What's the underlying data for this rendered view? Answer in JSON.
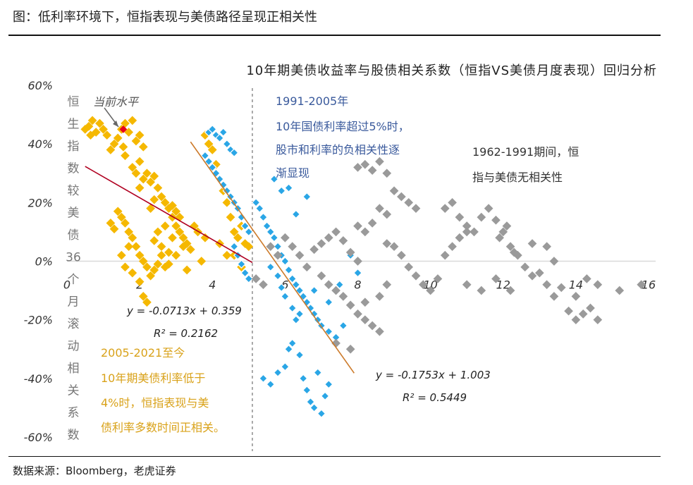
{
  "header": "图：低利率环境下，恒指表现与美债路径呈现正相关性",
  "source": "数据来源：Bloomberg，老虎证券",
  "chart_data": {
    "type": "scatter",
    "title": "10年期美债收益率与股债相关系数（恒指VS美债月度表现）回归分析",
    "ylabel": "恒生指数较美债36个月滚动相关系数",
    "xlim": [
      0,
      16
    ],
    "ylim": [
      -0.6,
      0.6
    ],
    "xticks": [
      "0",
      "2",
      "4",
      "6",
      "8",
      "10",
      "12",
      "14",
      "16"
    ],
    "yticks": [
      "60%",
      "40%",
      "20%",
      "0%",
      "-20%",
      "-40%",
      "-60%"
    ],
    "divider_x": 5.1,
    "annotations": {
      "current_level": "当前水平",
      "blue_note": [
        "1991-2005年",
        "10年国债利率超过5%时，",
        "股市和利率的负相关性逐",
        "渐显现"
      ],
      "gray_note": [
        "1962-1991期间，恒",
        "指与美债无相关性"
      ],
      "orange_note": [
        "2005-2021至今",
        "10年期美债利率低于",
        "4%时，恒指表现与美",
        "债利率多数时间正相关。"
      ]
    },
    "regressions": [
      {
        "equation": "y = -0.0713x + 0.359",
        "r2": "R² = 0.2162",
        "slope": -0.0713,
        "intercept": 0.359,
        "x_range": [
          0.5,
          5.1
        ],
        "color": "#b00020"
      },
      {
        "equation": "y = -0.1753x + 1.003",
        "r2": "R² = 0.5449",
        "slope": -0.1753,
        "intercept": 1.003,
        "x_range": [
          3.4,
          7.9
        ],
        "color": "#cc7a2a"
      }
    ],
    "current_point": {
      "x": 1.55,
      "y": 0.45,
      "color": "#e8001c"
    },
    "series": [
      {
        "name": "",
        "color": "#f5b800",
        "points": [
          [
            0.5,
            0.45
          ],
          [
            0.6,
            0.46
          ],
          [
            0.7,
            0.48
          ],
          [
            0.8,
            0.44
          ],
          [
            0.9,
            0.47
          ],
          [
            1.0,
            0.45
          ],
          [
            1.1,
            0.43
          ],
          [
            0.65,
            0.43
          ],
          [
            1.2,
            0.38
          ],
          [
            1.4,
            0.42
          ],
          [
            1.5,
            0.45
          ],
          [
            1.6,
            0.47
          ],
          [
            1.7,
            0.44
          ],
          [
            1.8,
            0.48
          ],
          [
            1.9,
            0.41
          ],
          [
            2.0,
            0.43
          ],
          [
            2.1,
            0.39
          ],
          [
            1.3,
            0.4
          ],
          [
            1.55,
            0.39
          ],
          [
            1.9,
            0.3
          ],
          [
            2.0,
            0.25
          ],
          [
            2.1,
            0.28
          ],
          [
            2.2,
            0.3
          ],
          [
            2.3,
            0.27
          ],
          [
            2.4,
            0.29
          ],
          [
            2.5,
            0.25
          ],
          [
            2.6,
            0.22
          ],
          [
            2.7,
            0.2
          ],
          [
            2.8,
            0.18
          ],
          [
            2.9,
            0.15
          ],
          [
            3.0,
            0.12
          ],
          [
            3.1,
            0.1
          ],
          [
            3.2,
            0.08
          ],
          [
            3.3,
            0.06
          ],
          [
            3.4,
            0.04
          ],
          [
            1.4,
            0.17
          ],
          [
            1.5,
            0.15
          ],
          [
            1.6,
            0.13
          ],
          [
            1.7,
            0.1
          ],
          [
            1.8,
            0.08
          ],
          [
            1.9,
            0.05
          ],
          [
            2.0,
            0.02
          ],
          [
            2.1,
            0.0
          ],
          [
            2.2,
            -0.02
          ],
          [
            2.3,
            -0.05
          ],
          [
            2.4,
            0.07
          ],
          [
            2.5,
            0.1
          ],
          [
            2.6,
            0.05
          ],
          [
            2.7,
            0.12
          ],
          [
            2.8,
            -0.01
          ],
          [
            2.9,
            0.08
          ],
          [
            1.5,
            0.02
          ],
          [
            1.6,
            -0.02
          ],
          [
            1.7,
            0.05
          ],
          [
            1.8,
            -0.04
          ],
          [
            2.0,
            -0.07
          ],
          [
            2.1,
            -0.12
          ],
          [
            2.2,
            -0.14
          ],
          [
            2.4,
            -0.03
          ],
          [
            2.5,
            -0.01
          ],
          [
            2.6,
            0.02
          ],
          [
            2.7,
            -0.02
          ],
          [
            2.8,
            0.03
          ],
          [
            3.0,
            0.02
          ],
          [
            3.2,
            0.05
          ],
          [
            3.3,
            -0.03
          ],
          [
            1.2,
            0.13
          ],
          [
            1.3,
            0.11
          ],
          [
            2.3,
            0.18
          ],
          [
            2.4,
            0.21
          ],
          [
            2.9,
            0.19
          ],
          [
            3.0,
            0.17
          ],
          [
            3.1,
            0.15
          ],
          [
            3.5,
            0.12
          ],
          [
            3.6,
            0.1
          ],
          [
            3.8,
            0.08
          ],
          [
            3.9,
            0.4
          ],
          [
            4.0,
            0.38
          ],
          [
            3.8,
            0.43
          ],
          [
            4.1,
            0.33
          ],
          [
            4.3,
            0.24
          ],
          [
            4.4,
            0.2
          ],
          [
            4.5,
            0.15
          ],
          [
            4.6,
            0.1
          ],
          [
            4.7,
            0.08
          ],
          [
            4.8,
            0.12
          ],
          [
            4.9,
            0.06
          ],
          [
            5.0,
            0.05
          ],
          [
            4.6,
            0.02
          ],
          [
            4.8,
            -0.02
          ],
          [
            4.2,
            0.06
          ],
          [
            4.4,
            0.02
          ],
          [
            3.7,
            0.0
          ],
          [
            1.6,
            0.36
          ],
          [
            1.8,
            0.32
          ],
          [
            2.0,
            0.34
          ]
        ]
      },
      {
        "name": "",
        "color": "#2aa6e6",
        "points": [
          [
            3.9,
            0.44
          ],
          [
            4.0,
            0.45
          ],
          [
            4.1,
            0.43
          ],
          [
            4.2,
            0.42
          ],
          [
            4.3,
            0.44
          ],
          [
            4.4,
            0.4
          ],
          [
            4.5,
            0.38
          ],
          [
            4.6,
            0.37
          ],
          [
            3.8,
            0.36
          ],
          [
            3.9,
            0.34
          ],
          [
            4.0,
            0.32
          ],
          [
            4.1,
            0.3
          ],
          [
            4.2,
            0.28
          ],
          [
            4.3,
            0.26
          ],
          [
            4.4,
            0.24
          ],
          [
            4.5,
            0.22
          ],
          [
            4.6,
            0.2
          ],
          [
            4.7,
            0.18
          ],
          [
            4.8,
            0.15
          ],
          [
            4.9,
            0.12
          ],
          [
            5.0,
            0.1
          ],
          [
            4.6,
            0.05
          ],
          [
            4.7,
            0.02
          ],
          [
            4.8,
            -0.01
          ],
          [
            4.9,
            -0.04
          ],
          [
            5.0,
            -0.06
          ],
          [
            5.2,
            0.2
          ],
          [
            5.3,
            0.18
          ],
          [
            5.4,
            0.15
          ],
          [
            5.5,
            0.12
          ],
          [
            5.6,
            0.1
          ],
          [
            5.7,
            0.08
          ],
          [
            5.8,
            0.05
          ],
          [
            5.9,
            0.02
          ],
          [
            6.0,
            0.0
          ],
          [
            6.1,
            -0.03
          ],
          [
            6.2,
            -0.06
          ],
          [
            6.3,
            -0.08
          ],
          [
            6.4,
            -0.1
          ],
          [
            6.5,
            -0.12
          ],
          [
            6.6,
            -0.14
          ],
          [
            6.7,
            -0.16
          ],
          [
            6.8,
            -0.18
          ],
          [
            6.9,
            -0.2
          ],
          [
            7.0,
            -0.22
          ],
          [
            7.2,
            -0.24
          ],
          [
            7.4,
            -0.26
          ],
          [
            5.6,
            -0.02
          ],
          [
            5.8,
            -0.05
          ],
          [
            5.9,
            -0.09
          ],
          [
            6.0,
            -0.12
          ],
          [
            6.2,
            -0.16
          ],
          [
            6.3,
            -0.2
          ],
          [
            6.4,
            -0.18
          ],
          [
            6.8,
            -0.1
          ],
          [
            7.2,
            -0.14
          ],
          [
            7.5,
            -0.08
          ],
          [
            7.6,
            -0.22
          ],
          [
            7.8,
            0.02
          ],
          [
            8.0,
            -0.04
          ],
          [
            5.4,
            -0.4
          ],
          [
            5.6,
            -0.42
          ],
          [
            5.8,
            -0.38
          ],
          [
            6.0,
            -0.36
          ],
          [
            6.1,
            -0.3
          ],
          [
            6.2,
            -0.28
          ],
          [
            6.4,
            -0.32
          ],
          [
            6.5,
            -0.4
          ],
          [
            6.6,
            -0.44
          ],
          [
            6.7,
            -0.48
          ],
          [
            6.8,
            -0.5
          ],
          [
            7.0,
            -0.52
          ],
          [
            6.9,
            -0.38
          ],
          [
            7.2,
            -0.42
          ],
          [
            7.1,
            -0.46
          ],
          [
            5.7,
            0.28
          ],
          [
            5.9,
            0.24
          ],
          [
            6.1,
            0.25
          ],
          [
            6.3,
            0.16
          ],
          [
            6.6,
            0.22
          ]
        ]
      },
      {
        "name": "",
        "color": "#9a9a9a",
        "points": [
          [
            5.2,
            -0.06
          ],
          [
            5.4,
            -0.08
          ],
          [
            5.6,
            0.05
          ],
          [
            5.8,
            0.02
          ],
          [
            6.0,
            0.08
          ],
          [
            6.2,
            0.05
          ],
          [
            6.4,
            0.02
          ],
          [
            6.6,
            -0.02
          ],
          [
            6.8,
            0.04
          ],
          [
            7.0,
            0.06
          ],
          [
            7.2,
            0.08
          ],
          [
            7.4,
            0.1
          ],
          [
            7.6,
            0.07
          ],
          [
            7.8,
            0.03
          ],
          [
            8.0,
            0.0
          ],
          [
            7.0,
            -0.05
          ],
          [
            7.2,
            -0.08
          ],
          [
            7.4,
            -0.1
          ],
          [
            7.6,
            -0.12
          ],
          [
            7.8,
            -0.15
          ],
          [
            8.0,
            -0.18
          ],
          [
            8.2,
            -0.2
          ],
          [
            8.4,
            -0.22
          ],
          [
            8.6,
            -0.24
          ],
          [
            7.4,
            -0.28
          ],
          [
            7.8,
            -0.3
          ],
          [
            8.2,
            -0.14
          ],
          [
            8.6,
            -0.12
          ],
          [
            8.8,
            -0.08
          ],
          [
            8.8,
            0.06
          ],
          [
            9.0,
            0.05
          ],
          [
            9.2,
            0.02
          ],
          [
            9.4,
            -0.02
          ],
          [
            9.6,
            -0.05
          ],
          [
            9.8,
            -0.08
          ],
          [
            10.0,
            -0.1
          ],
          [
            10.2,
            -0.06
          ],
          [
            10.4,
            0.02
          ],
          [
            10.6,
            0.05
          ],
          [
            10.8,
            0.08
          ],
          [
            11.0,
            0.1
          ],
          [
            8.0,
            0.32
          ],
          [
            8.2,
            0.33
          ],
          [
            8.4,
            0.31
          ],
          [
            8.6,
            0.34
          ],
          [
            8.8,
            0.3
          ],
          [
            9.0,
            0.24
          ],
          [
            9.2,
            0.22
          ],
          [
            9.4,
            0.2
          ],
          [
            9.6,
            0.18
          ],
          [
            8.6,
            0.18
          ],
          [
            8.8,
            0.16
          ],
          [
            8.0,
            0.12
          ],
          [
            8.2,
            0.1
          ],
          [
            8.4,
            0.13
          ],
          [
            10.4,
            0.18
          ],
          [
            10.6,
            0.2
          ],
          [
            10.8,
            0.15
          ],
          [
            11.0,
            0.12
          ],
          [
            11.2,
            0.1
          ],
          [
            11.4,
            0.15
          ],
          [
            11.6,
            0.18
          ],
          [
            11.8,
            0.14
          ],
          [
            12.0,
            0.1
          ],
          [
            12.2,
            0.05
          ],
          [
            12.4,
            0.02
          ],
          [
            12.6,
            -0.02
          ],
          [
            12.8,
            -0.05
          ],
          [
            13.0,
            -0.04
          ],
          [
            11.0,
            -0.08
          ],
          [
            11.4,
            -0.1
          ],
          [
            11.8,
            -0.06
          ],
          [
            12.2,
            -0.1
          ],
          [
            13.2,
            -0.08
          ],
          [
            13.4,
            -0.12
          ],
          [
            13.6,
            -0.09
          ],
          [
            14.0,
            -0.12
          ],
          [
            14.3,
            -0.06
          ],
          [
            14.6,
            -0.08
          ],
          [
            15.2,
            -0.1
          ],
          [
            15.8,
            -0.08
          ],
          [
            13.4,
            0.0
          ],
          [
            13.8,
            -0.17
          ],
          [
            14.0,
            -0.2
          ],
          [
            14.2,
            -0.18
          ],
          [
            14.4,
            -0.16
          ],
          [
            14.6,
            -0.2
          ],
          [
            11.9,
            0.08
          ],
          [
            12.1,
            0.12
          ],
          [
            12.3,
            0.03
          ],
          [
            12.8,
            0.06
          ],
          [
            13.2,
            0.05
          ]
        ]
      }
    ]
  }
}
